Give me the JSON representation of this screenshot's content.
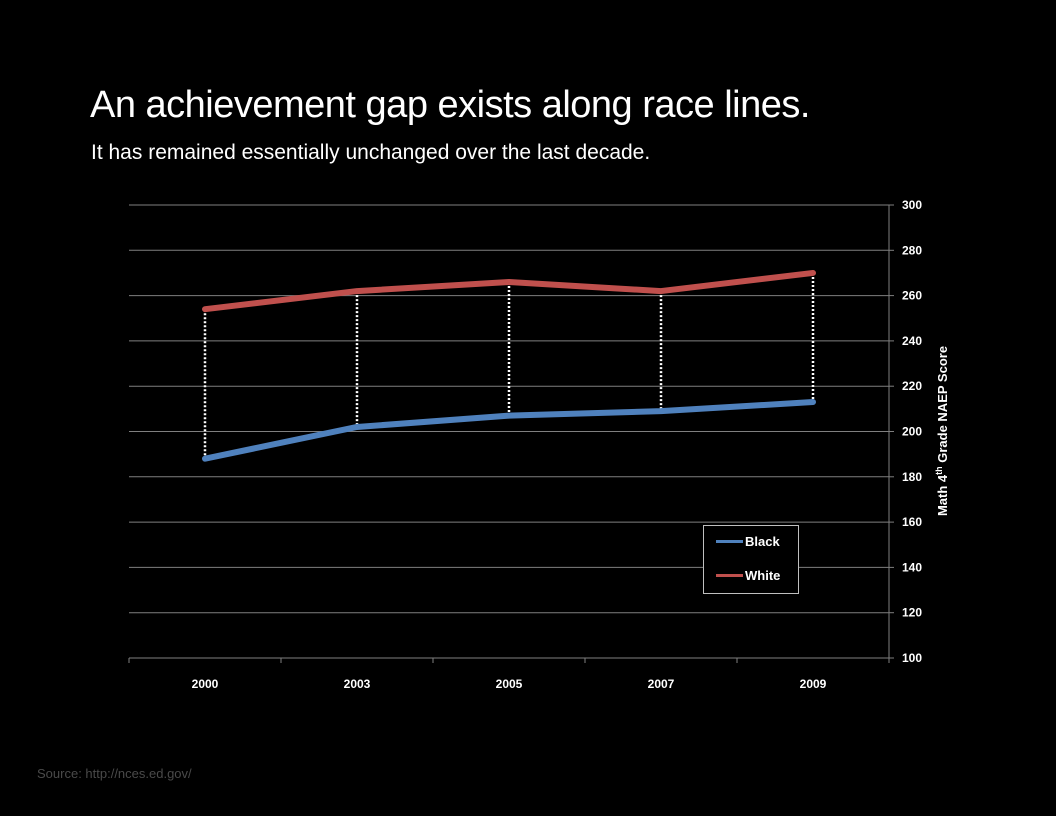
{
  "title": "An achievement gap exists along race lines.",
  "subtitle": "It has remained essentially unchanged over the last decade.",
  "source": "Source: http://nces.ed.gov/",
  "colors": {
    "black_series": "#4f81bd",
    "white_series": "#c0504d",
    "grid": "#7f7f7f",
    "connector": "#ffffff"
  },
  "chart_data": {
    "type": "line",
    "title": "An achievement gap exists along race lines.",
    "subtitle": "It has remained essentially unchanged over the last decade.",
    "categories": [
      "2000",
      "2003",
      "2005",
      "2007",
      "2009"
    ],
    "series": [
      {
        "name": "Black",
        "values": [
          188,
          202,
          207,
          209,
          213
        ]
      },
      {
        "name": "White",
        "values": [
          254,
          262,
          266,
          262,
          270
        ]
      }
    ],
    "xlabel": "",
    "ylabel": "Math 4th Grade NAEP Score",
    "ylim": [
      100,
      300
    ],
    "yticks": [
      "100",
      "120",
      "140",
      "160",
      "180",
      "200",
      "220",
      "240",
      "260",
      "280",
      "300"
    ],
    "y_axis_side": "right",
    "grid": true,
    "drop_lines": true,
    "legend": {
      "position": "bottom-right",
      "entries": [
        "Black",
        "White"
      ]
    }
  },
  "ylabel_parts": {
    "pre": "Math 4",
    "sup": "th",
    "post": " Grade NAEP Score"
  }
}
